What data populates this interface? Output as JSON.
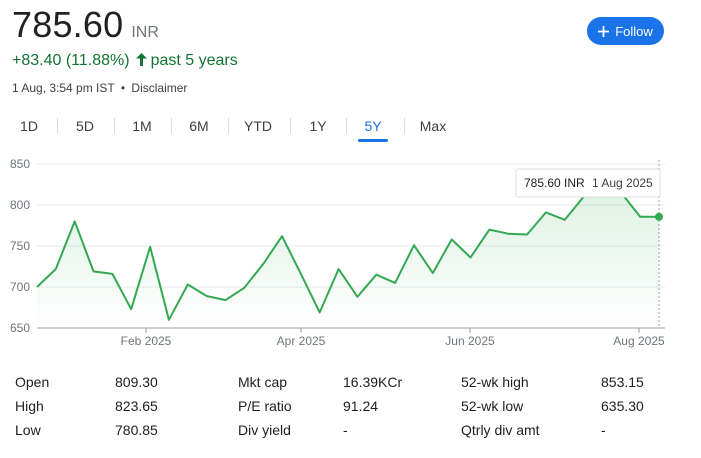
{
  "quote": {
    "price": "785.60",
    "currency": "INR",
    "change": "+83.40 (11.88%)",
    "change_direction_icon": "arrow-up-icon",
    "period": "past 5 years",
    "timestamp": "1 Aug, 3:54 pm IST",
    "separator": "•",
    "disclaimer": "Disclaimer"
  },
  "follow_button": {
    "label": "Follow",
    "icon": "plus-icon",
    "color": "#1a73e8"
  },
  "tabs": [
    {
      "label": "1D"
    },
    {
      "label": "5D"
    },
    {
      "label": "1M"
    },
    {
      "label": "6M"
    },
    {
      "label": "YTD"
    },
    {
      "label": "1Y"
    },
    {
      "label": "5Y",
      "active": true
    },
    {
      "label": "Max"
    }
  ],
  "tooltip": {
    "value": "785.60 INR",
    "date": "1 Aug 2025"
  },
  "chart_data": {
    "type": "area",
    "ylim": [
      650,
      860
    ],
    "yticks": [
      "850",
      "800",
      "750",
      "700",
      "650"
    ],
    "xticks": [
      "Feb 2025",
      "Apr 2025",
      "Jun 2025",
      "Aug 2025"
    ],
    "line_color": "#34a853",
    "values": [
      700,
      722,
      780,
      719,
      716,
      673,
      749,
      660,
      703,
      689,
      684,
      699,
      728,
      762,
      716,
      669,
      722,
      688,
      715,
      705,
      751,
      717,
      758,
      736,
      770,
      765,
      764,
      791,
      782,
      810,
      818,
      815,
      785.6,
      785.6
    ]
  },
  "stats": [
    {
      "label": "Open",
      "value": "809.30"
    },
    {
      "label": "High",
      "value": "823.65"
    },
    {
      "label": "Low",
      "value": "780.85"
    },
    {
      "label": "Mkt cap",
      "value": "16.39KCr"
    },
    {
      "label": "P/E ratio",
      "value": "91.24"
    },
    {
      "label": "Div yield",
      "value": "-"
    },
    {
      "label": "52-wk high",
      "value": "853.15"
    },
    {
      "label": "52-wk low",
      "value": "635.30"
    },
    {
      "label": "Qtrly div amt",
      "value": "-"
    }
  ]
}
